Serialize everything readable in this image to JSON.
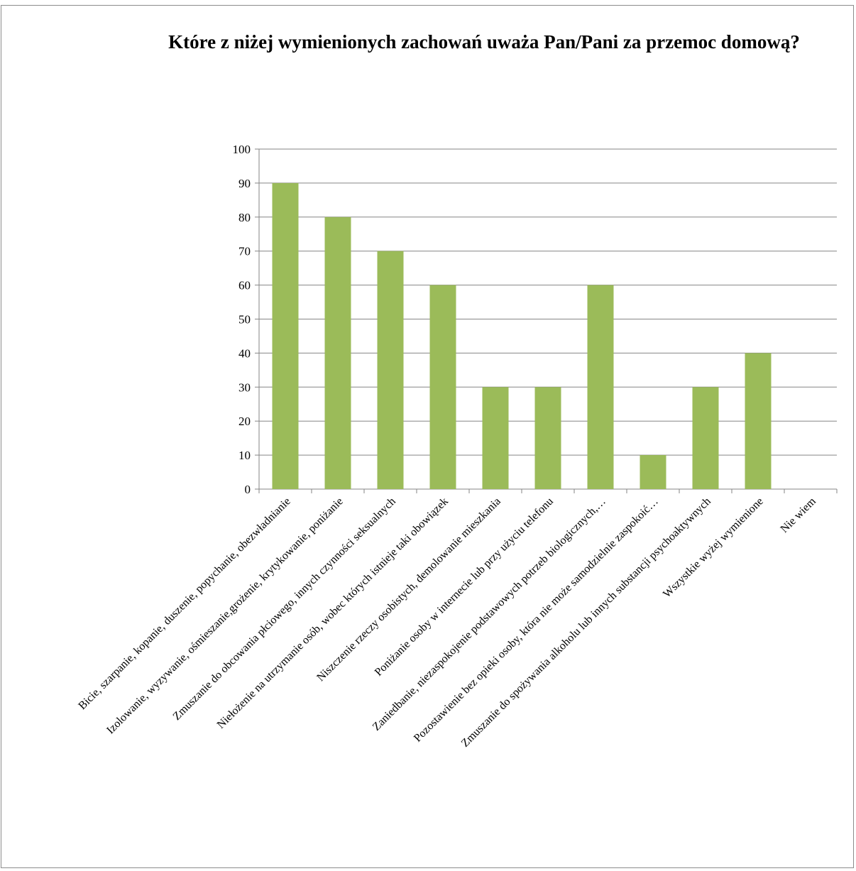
{
  "chart_data": {
    "type": "bar",
    "title": "Które z niżej wymienionych zachowań uważa Pan/Pani za przemoc domową?",
    "categories": [
      "Bicie, szarpanie, kopanie, duszenie, popychanie, obezwładnianie",
      "Izolowanie, wyzywanie, ośmieszanie,grożenie, krytykowanie, poniżanie",
      "Zmuszanie do obcowania płciowego, innych czynności seksualnych",
      "Niełożenie na utrzymanie osób, wobec których istnieje taki obowiązek",
      "Niszczenie rzeczy osobistych, demolowanie mieszkania",
      "Poniżanie osoby w internecie lub przy użyciu telefonu",
      "Zaniedbanie, niezaspokojenie podstawowych potrzeb biologicznych,…",
      "Pozostawienie bez opieki osoby, która  nie może samodzielnie zaspokoić…",
      "Zmuszanie do spożywania alkoholu lub innych substancji psychoaktywnych",
      "Wszystkie wyżej wymienione",
      "Nie wiem"
    ],
    "values": [
      90,
      80,
      70,
      60,
      30,
      30,
      60,
      10,
      30,
      40,
      0
    ],
    "ylim": [
      0,
      100
    ],
    "yticks": [
      "0",
      "10",
      "20",
      "30",
      "40",
      "50",
      "60",
      "70",
      "80",
      "90",
      "100"
    ],
    "grid": true,
    "legend": "none",
    "bar_color": "#9bbb59",
    "grid_color": "#868686"
  }
}
